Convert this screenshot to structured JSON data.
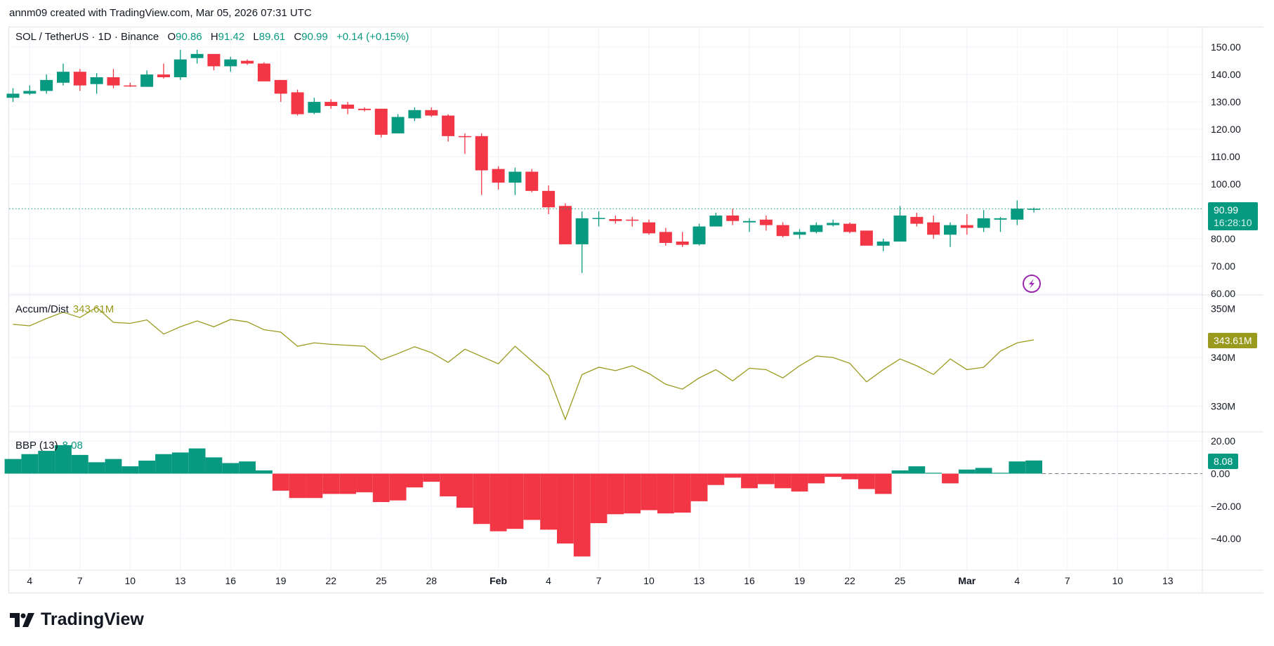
{
  "credit": "annm09 created with TradingView.com, Mar 05, 2026 07:31 UTC",
  "legend": {
    "symbol": "SOL / TetherUS · 1D · Binance",
    "o_label": "O",
    "o": "90.86",
    "h_label": "H",
    "h": "91.42",
    "l_label": "L",
    "l": "89.61",
    "c_label": "C",
    "c": "90.99",
    "change": "+0.14 (+0.15%)"
  },
  "ad_legend": {
    "name": "Accum/Dist",
    "value": "343.61M"
  },
  "bbp_legend": {
    "name": "BBP (13)",
    "value": "8.08"
  },
  "price_tag": {
    "price": "90.99",
    "countdown": "16:28:10"
  },
  "ad_tag": "343.61M",
  "bbp_tag": "8.08",
  "logo": "TradingView",
  "colors": {
    "up": "#089981",
    "down": "#f23645",
    "ad_line": "#9a9a1e",
    "grid": "#f0f3fa",
    "text": "#131722",
    "event_icon": "#9c27b0"
  },
  "icons": {
    "event": "lightning-bolt-icon",
    "logo": "tradingview-logo-icon"
  },
  "chart_data": [
    {
      "type": "candlestick",
      "pane": "price",
      "yticks": [
        "150.00",
        "140.00",
        "130.00",
        "120.00",
        "110.00",
        "100.00",
        "80.00",
        "70.00",
        "60.00"
      ],
      "ylim": [
        60,
        150
      ],
      "dates": [
        "Jan 3",
        "Jan 4",
        "Jan 5",
        "Jan 6",
        "Jan 7",
        "Jan 8",
        "Jan 9",
        "Jan 10",
        "Jan 11",
        "Jan 12",
        "Jan 13",
        "Jan 14",
        "Jan 15",
        "Jan 16",
        "Jan 17",
        "Jan 18",
        "Jan 19",
        "Jan 20",
        "Jan 21",
        "Jan 22",
        "Jan 23",
        "Jan 24",
        "Jan 25",
        "Jan 26",
        "Jan 27",
        "Jan 28",
        "Jan 29",
        "Jan 30",
        "Jan 31",
        "Feb 1",
        "Feb 2",
        "Feb 3",
        "Feb 4",
        "Feb 5",
        "Feb 6",
        "Feb 7",
        "Feb 8",
        "Feb 9",
        "Feb 10",
        "Feb 11",
        "Feb 12",
        "Feb 13",
        "Feb 14",
        "Feb 15",
        "Feb 16",
        "Feb 17",
        "Feb 18",
        "Feb 19",
        "Feb 20",
        "Feb 21",
        "Feb 22",
        "Feb 23",
        "Feb 24",
        "Feb 25",
        "Feb 26",
        "Feb 27",
        "Feb 28",
        "Mar 1",
        "Mar 2",
        "Mar 3",
        "Mar 4",
        "Mar 5"
      ],
      "ohlc": [
        [
          131.5,
          135,
          130,
          133
        ],
        [
          133,
          136,
          132.5,
          134
        ],
        [
          134,
          140,
          133,
          138
        ],
        [
          137,
          144,
          136,
          141
        ],
        [
          141,
          142,
          134,
          136
        ],
        [
          136.5,
          140.5,
          133,
          139
        ],
        [
          139,
          142,
          135,
          136
        ],
        [
          136,
          137,
          135.5,
          135.8
        ],
        [
          135.5,
          141.5,
          135.5,
          140
        ],
        [
          140,
          144,
          138.5,
          139
        ],
        [
          139,
          149,
          138,
          145.5
        ],
        [
          146,
          149,
          144,
          147.5
        ],
        [
          147.5,
          147.5,
          141.5,
          143
        ],
        [
          143,
          146.5,
          141,
          145.5
        ],
        [
          145,
          145.5,
          143.5,
          144
        ],
        [
          144,
          144.5,
          137.5,
          137.5
        ],
        [
          138,
          138,
          130,
          133
        ],
        [
          133.5,
          134.5,
          125,
          125.5
        ],
        [
          126,
          131.5,
          125.5,
          130
        ],
        [
          130,
          131,
          127.5,
          128.5
        ],
        [
          129,
          130,
          125.5,
          127.5
        ],
        [
          127.5,
          128,
          126.5,
          127
        ],
        [
          127.5,
          127.5,
          117,
          118
        ],
        [
          118.5,
          125.5,
          118.5,
          124.5
        ],
        [
          124,
          128,
          123,
          127
        ],
        [
          127,
          128,
          124.5,
          125
        ],
        [
          125,
          125.5,
          115.5,
          117.5
        ],
        [
          117.5,
          118.5,
          111,
          117.3
        ],
        [
          117.5,
          118.5,
          96,
          105
        ],
        [
          105.5,
          106.5,
          98,
          100.5
        ],
        [
          100.5,
          106,
          96,
          104.5
        ],
        [
          104.5,
          105.5,
          97,
          97.5
        ],
        [
          97.5,
          99.5,
          89,
          91.5
        ],
        [
          92,
          93,
          78,
          78
        ],
        [
          78,
          90,
          67.5,
          87.5
        ],
        [
          87.5,
          90,
          84.5,
          87.6
        ],
        [
          87.2,
          88.5,
          85.5,
          86.5
        ],
        [
          87,
          88,
          84.5,
          86.7
        ],
        [
          86,
          87,
          81.5,
          82
        ],
        [
          82.5,
          84,
          77.5,
          78.5
        ],
        [
          79,
          82.5,
          77,
          77.8
        ],
        [
          78,
          85.5,
          77.5,
          84.5
        ],
        [
          84.5,
          89.5,
          84.5,
          88.5
        ],
        [
          88.5,
          91,
          85,
          86.5
        ],
        [
          86,
          87.5,
          82.5,
          86.5
        ],
        [
          87,
          88.5,
          83,
          85
        ],
        [
          85,
          86,
          80.5,
          81
        ],
        [
          81.5,
          83.5,
          80,
          82.5
        ],
        [
          82.5,
          86,
          82,
          85
        ],
        [
          85,
          87,
          84.5,
          85.8
        ],
        [
          85.5,
          86,
          82,
          82.5
        ],
        [
          83,
          83,
          77.5,
          77.5
        ],
        [
          77.5,
          80,
          75.5,
          79
        ],
        [
          79,
          92,
          79,
          88.5
        ],
        [
          88,
          89.5,
          84.5,
          85.5
        ],
        [
          86,
          88.5,
          80,
          81.5
        ],
        [
          81.5,
          86,
          77,
          85
        ],
        [
          85,
          89,
          81.5,
          84
        ],
        [
          84,
          90.5,
          82.5,
          87.5
        ],
        [
          87,
          88,
          82.5,
          87.5
        ],
        [
          87,
          94,
          85,
          91
        ],
        [
          90.86,
          91.42,
          89.61,
          90.99
        ]
      ]
    },
    {
      "type": "line",
      "pane": "Accum/Dist",
      "unit": "M",
      "yticks": [
        "350M",
        "340M",
        "330M"
      ],
      "values": [
        346.8,
        346.5,
        348.0,
        349.3,
        348.2,
        350.3,
        347.2,
        347.0,
        347.7,
        344.8,
        346.3,
        347.5,
        346.3,
        347.8,
        347.3,
        345.7,
        345.2,
        342.3,
        343.0,
        342.7,
        342.5,
        342.3,
        339.5,
        340.8,
        342.2,
        341.0,
        339.0,
        341.7,
        340.2,
        338.7,
        342.3,
        339.3,
        336.3,
        327.3,
        336.5,
        338.0,
        337.3,
        338.3,
        336.7,
        334.5,
        333.5,
        335.8,
        337.5,
        335.2,
        337.8,
        337.5,
        335.8,
        338.3,
        340.3,
        340.0,
        338.8,
        335.0,
        337.5,
        339.7,
        338.3,
        336.5,
        339.7,
        337.5,
        338.0,
        341.3,
        343.0,
        343.61
      ]
    },
    {
      "type": "bar",
      "pane": "BBP (13)",
      "yticks": [
        "20.00",
        "0.00",
        "−20.00",
        "−40.00"
      ],
      "values": [
        9,
        12,
        14,
        17.5,
        11.5,
        7,
        9,
        4.5,
        8,
        12,
        13,
        15.5,
        10,
        6.5,
        7.5,
        2,
        -10.5,
        -15,
        -15,
        -12.5,
        -12.5,
        -11.5,
        -17.5,
        -16.5,
        -8.5,
        -5,
        -14,
        -21,
        -31,
        -35.5,
        -34,
        -28.5,
        -34.5,
        -43,
        -51,
        -30.5,
        -25,
        -24.5,
        -22.5,
        -24.5,
        -24,
        -17,
        -7,
        -2.5,
        -9,
        -6.5,
        -9,
        -11,
        -6,
        -2,
        -3.5,
        -9.5,
        -12.5,
        2,
        4.5,
        0.5,
        -6,
        2.5,
        3.5,
        0.5,
        7.5,
        8.08
      ]
    }
  ],
  "time_axis": [
    {
      "label": "4",
      "bold": false
    },
    {
      "label": "7",
      "bold": false
    },
    {
      "label": "10",
      "bold": false
    },
    {
      "label": "13",
      "bold": false
    },
    {
      "label": "16",
      "bold": false
    },
    {
      "label": "19",
      "bold": false
    },
    {
      "label": "22",
      "bold": false
    },
    {
      "label": "25",
      "bold": false
    },
    {
      "label": "28",
      "bold": false
    },
    {
      "label": "Feb",
      "bold": true
    },
    {
      "label": "4",
      "bold": false
    },
    {
      "label": "7",
      "bold": false
    },
    {
      "label": "10",
      "bold": false
    },
    {
      "label": "13",
      "bold": false
    },
    {
      "label": "16",
      "bold": false
    },
    {
      "label": "19",
      "bold": false
    },
    {
      "label": "22",
      "bold": false
    },
    {
      "label": "25",
      "bold": false
    },
    {
      "label": "Mar",
      "bold": true
    },
    {
      "label": "4",
      "bold": false
    },
    {
      "label": "7",
      "bold": false
    },
    {
      "label": "10",
      "bold": false
    },
    {
      "label": "13",
      "bold": false
    }
  ]
}
